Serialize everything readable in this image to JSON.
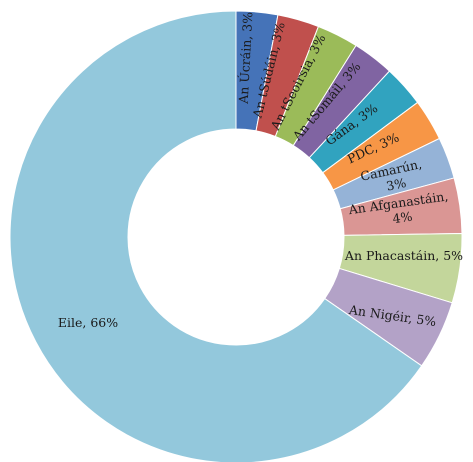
{
  "chart_data": {
    "type": "pie",
    "variant": "donut",
    "title": "",
    "legend": "none",
    "slices": [
      {
        "label": "An Úcráin, 3%",
        "value": 3,
        "color": "#4573b8"
      },
      {
        "label": "An tSúdáin, 3%",
        "value": 3,
        "color": "#c0504d"
      },
      {
        "label": "An tSeoirsia, 3%",
        "value": 3,
        "color": "#9bbb59"
      },
      {
        "label": "An tSomáil, 3%",
        "value": 3,
        "color": "#8064a2"
      },
      {
        "label": "Gána, 3%",
        "value": 3,
        "color": "#31a3bf"
      },
      {
        "label": "PDC, 3%",
        "value": 3,
        "color": "#f79646"
      },
      {
        "label": "Camarún, 3%",
        "value": 3,
        "color": "#95b3d7"
      },
      {
        "label": "An Afganastáin, 4%",
        "value": 4,
        "color": "#da9694"
      },
      {
        "label": "An Phacastáin, 5%",
        "value": 5,
        "color": "#c3d69b"
      },
      {
        "label": "An Nigéir, 5%",
        "value": 5,
        "color": "#b3a2c7"
      },
      {
        "label": "Eile, 66%",
        "value": 66,
        "color": "#93c8dc"
      }
    ]
  }
}
